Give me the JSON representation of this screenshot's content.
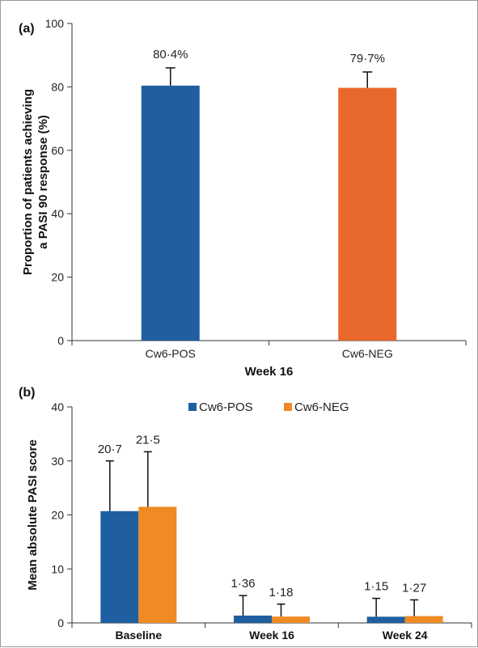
{
  "chart_data": [
    {
      "type": "bar",
      "panel_label": "(a)",
      "title": "",
      "ylabel_lines": [
        "Proportion of patients achieving",
        "a PASI 90 response (%)"
      ],
      "xlabel": "Week 16",
      "ylim": [
        0,
        100
      ],
      "yticks": [
        0,
        20,
        40,
        60,
        80,
        100
      ],
      "categories": [
        "Cw6-POS",
        "Cw6-NEG"
      ],
      "values": [
        80.4,
        79.7
      ],
      "error_plus": [
        5.6,
        5.0
      ],
      "data_labels": [
        "80·4%",
        "79·7%"
      ],
      "colors": [
        "#1f5fa0",
        "#e8682b"
      ],
      "grid": false
    },
    {
      "type": "bar",
      "panel_label": "(b)",
      "title": "",
      "ylabel": "Mean absolute PASI score",
      "xlabel": "",
      "ylim": [
        0,
        40
      ],
      "yticks": [
        0,
        10,
        20,
        30,
        40
      ],
      "categories": [
        "Baseline",
        "Week 16",
        "Week 24"
      ],
      "legend_position": "top-center",
      "series": [
        {
          "name": "Cw6-POS",
          "color": "#1f5fa0",
          "values": [
            20.7,
            1.36,
            1.15
          ],
          "error_plus": [
            9.3,
            3.7,
            3.4
          ],
          "data_labels": [
            "20·7",
            "1·36",
            "1·15"
          ]
        },
        {
          "name": "Cw6-NEG",
          "color": "#f08a24",
          "values": [
            21.5,
            1.18,
            1.27
          ],
          "error_plus": [
            10.2,
            2.3,
            3.0
          ],
          "data_labels": [
            "21·5",
            "1·18",
            "1·27"
          ]
        }
      ],
      "grid": false
    }
  ]
}
